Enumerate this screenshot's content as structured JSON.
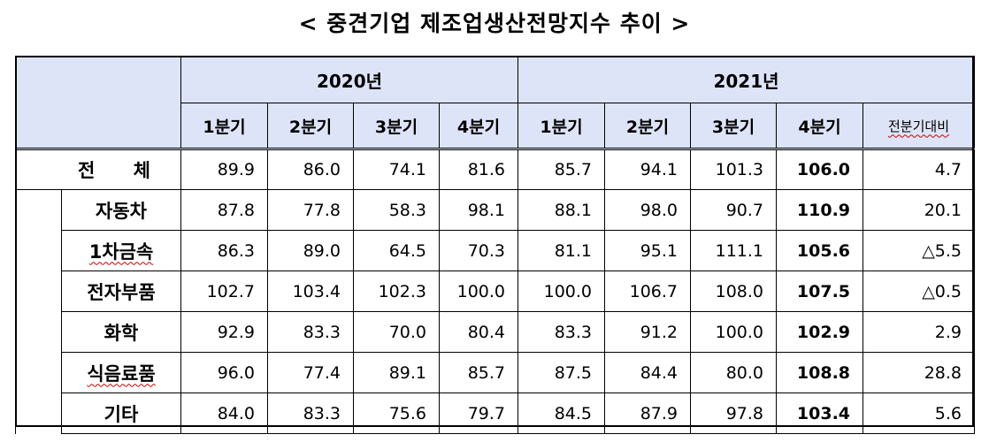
{
  "title": "< 중견기업 제조업생산전망지수 추이 >",
  "header": {
    "year1": "2020년",
    "year2": "2021년",
    "quarters_2020": [
      "1분기",
      "2분기",
      "3분기",
      "4분기"
    ],
    "quarters_2021": [
      "1분기",
      "2분기",
      "3분기",
      "4분기"
    ],
    "qoq_label": "전분기대비"
  },
  "rows": [
    {
      "label": "전 체",
      "values": [
        "89.9",
        "86.0",
        "74.1",
        "81.6",
        "85.7",
        "94.1",
        "101.3",
        "106.0",
        "4.7"
      ]
    },
    {
      "label": "자동차",
      "values": [
        "87.8",
        "77.8",
        "58.3",
        "98.1",
        "88.1",
        "98.0",
        "90.7",
        "110.9",
        "20.1"
      ]
    },
    {
      "label": "1차금속",
      "values": [
        "86.3",
        "89.0",
        "64.5",
        "70.3",
        "81.1",
        "95.1",
        "111.1",
        "105.6",
        "△5.5"
      ]
    },
    {
      "label": "전자부품",
      "values": [
        "102.7",
        "103.4",
        "102.3",
        "100.0",
        "100.0",
        "106.7",
        "108.0",
        "107.5",
        "△0.5"
      ]
    },
    {
      "label": "화학",
      "values": [
        "92.9",
        "83.3",
        "70.0",
        "80.4",
        "83.3",
        "91.2",
        "100.0",
        "102.9",
        "2.9"
      ]
    },
    {
      "label": "식음료품",
      "values": [
        "96.0",
        "77.4",
        "89.1",
        "85.7",
        "87.5",
        "84.4",
        "80.0",
        "108.8",
        "28.8"
      ]
    },
    {
      "label": "기타",
      "values": [
        "84.0",
        "83.3",
        "75.6",
        "79.7",
        "84.5",
        "87.9",
        "97.8",
        "103.4",
        "5.6"
      ]
    }
  ]
}
